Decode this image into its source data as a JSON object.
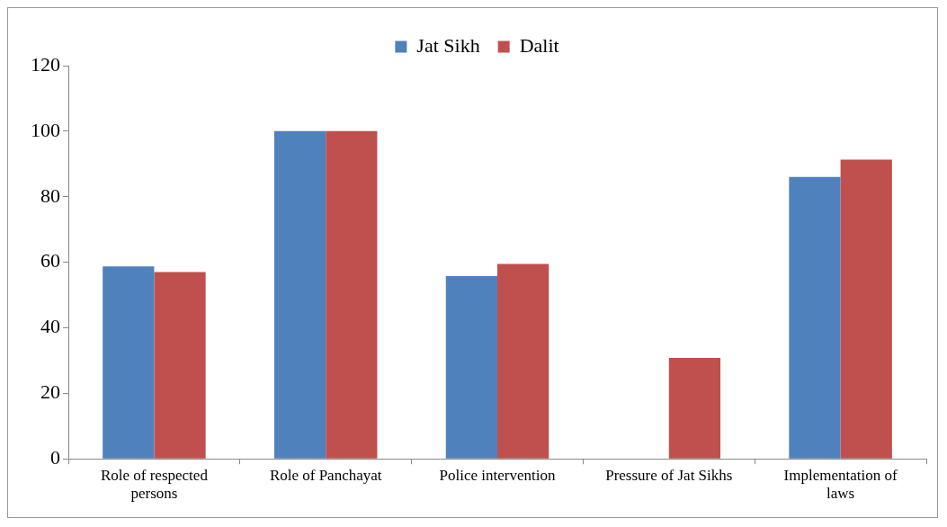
{
  "chart_data": {
    "type": "bar",
    "categories": [
      "Role of respected persons",
      "Role of Panchayat",
      "Police intervention",
      "Pressure of Jat Sikhs",
      "Implementation of laws"
    ],
    "series": [
      {
        "name": "Jat Sikh",
        "color": "#4f81bd",
        "values": [
          58.7,
          100,
          55.8,
          0,
          86
        ]
      },
      {
        "name": "Dalit",
        "color": "#c0504d",
        "values": [
          57,
          100,
          59.5,
          30.8,
          91.3
        ]
      }
    ],
    "ylim": [
      0,
      120
    ],
    "yticks": [
      0,
      20,
      40,
      60,
      80,
      100,
      120
    ],
    "grid": false,
    "legend": "top"
  }
}
